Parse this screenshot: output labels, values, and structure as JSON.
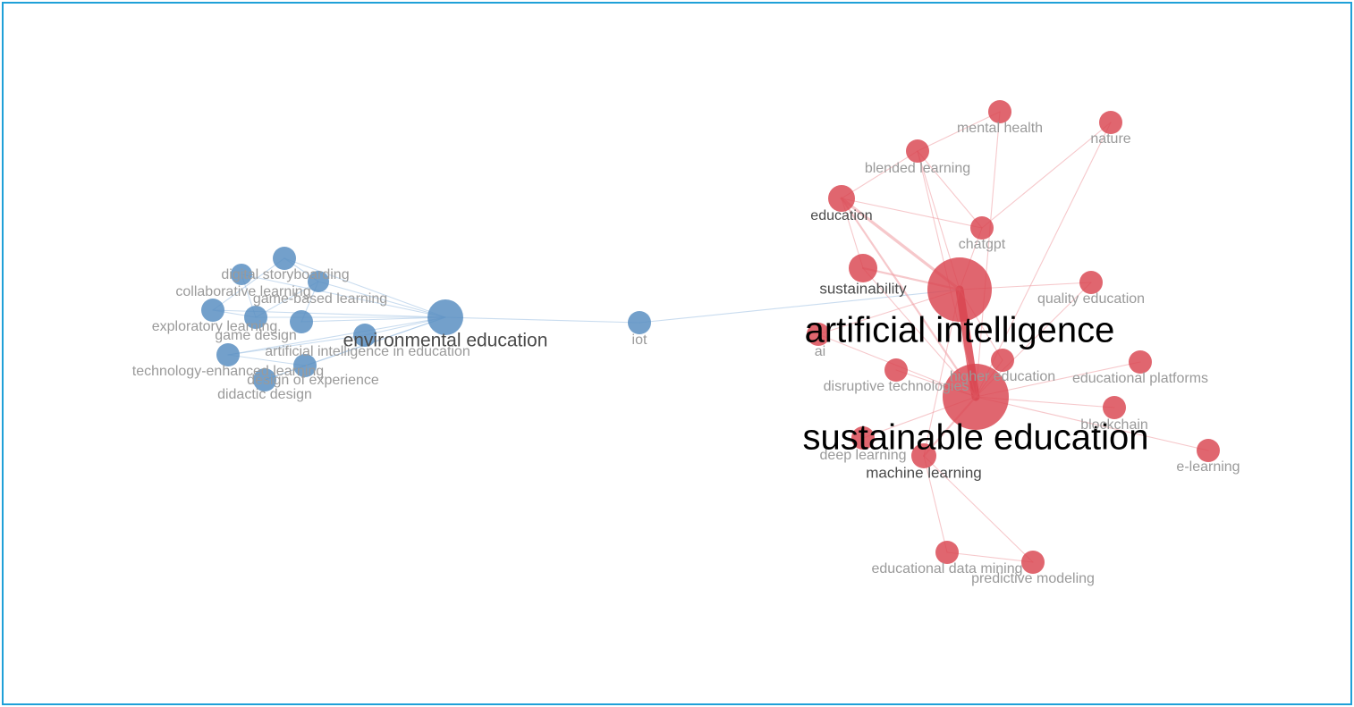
{
  "colors": {
    "frame": "#1fa0d8",
    "blue_cluster": "#5b8fc2",
    "red_cluster": "#d9444f",
    "blue_edge": "#9cc0e2",
    "red_edge": "#ee9aa0",
    "label_dark": "#000000",
    "label_mid": "#4a4a4a",
    "label_light": "#9a9a9a"
  },
  "network": {
    "clusters": [
      {
        "id": "blue",
        "color": "#5b8fc2"
      },
      {
        "id": "red",
        "color": "#d9444f"
      }
    ],
    "nodes": [
      {
        "id": "digital-storyboarding",
        "label": "digital storyboarding",
        "cluster": "blue",
        "weight": 1
      },
      {
        "id": "collaborative-learning",
        "label": "collaborative learning",
        "cluster": "blue",
        "weight": 1
      },
      {
        "id": "game-based-learning",
        "label": "game-based learning",
        "cluster": "blue",
        "weight": 1
      },
      {
        "id": "exploratory-learning",
        "label": "exploratory learning",
        "cluster": "blue",
        "weight": 1
      },
      {
        "id": "game-design",
        "label": "game design",
        "cluster": "blue",
        "weight": 1
      },
      {
        "id": "environmental-education",
        "label": "environmental education",
        "cluster": "blue",
        "weight": 3
      },
      {
        "id": "artificial-intelligence-in-education",
        "label": "artificial intelligence in education",
        "cluster": "blue",
        "weight": 1
      },
      {
        "id": "technology-enhanced-learning",
        "label": "technology-enhanced learning",
        "cluster": "blue",
        "weight": 1
      },
      {
        "id": "design-of-experience",
        "label": "design of experience",
        "cluster": "blue",
        "weight": 1
      },
      {
        "id": "didactic-design",
        "label": "didactic design",
        "cluster": "blue",
        "weight": 1
      },
      {
        "id": "blue-node-a",
        "label": "",
        "cluster": "blue",
        "weight": 1
      },
      {
        "id": "iot",
        "label": "iot",
        "cluster": "blue",
        "weight": 1
      },
      {
        "id": "mental-health",
        "label": "mental health",
        "cluster": "red",
        "weight": 1
      },
      {
        "id": "nature",
        "label": "nature",
        "cluster": "red",
        "weight": 1
      },
      {
        "id": "blended-learning",
        "label": "blended learning",
        "cluster": "red",
        "weight": 1
      },
      {
        "id": "education",
        "label": "education",
        "cluster": "red",
        "weight": 2
      },
      {
        "id": "chatgpt",
        "label": "chatgpt",
        "cluster": "red",
        "weight": 1
      },
      {
        "id": "sustainability",
        "label": "sustainability",
        "cluster": "red",
        "weight": 2
      },
      {
        "id": "quality-education",
        "label": "quality education",
        "cluster": "red",
        "weight": 1
      },
      {
        "id": "artificial-intelligence",
        "label": "artificial intelligence",
        "cluster": "red",
        "weight": 12
      },
      {
        "id": "ai",
        "label": "ai",
        "cluster": "red",
        "weight": 1
      },
      {
        "id": "higher-education",
        "label": "higher education",
        "cluster": "red",
        "weight": 1
      },
      {
        "id": "educational-platforms",
        "label": "educational platforms",
        "cluster": "red",
        "weight": 1
      },
      {
        "id": "disruptive-technologies",
        "label": "disruptive technologies",
        "cluster": "red",
        "weight": 1
      },
      {
        "id": "sustainable-education",
        "label": "sustainable education",
        "cluster": "red",
        "weight": 14
      },
      {
        "id": "blockchain",
        "label": "blockchain",
        "cluster": "red",
        "weight": 1
      },
      {
        "id": "deep-learning",
        "label": "deep learning",
        "cluster": "red",
        "weight": 1
      },
      {
        "id": "machine-learning",
        "label": "machine learning",
        "cluster": "red",
        "weight": 2
      },
      {
        "id": "e-learning",
        "label": "e-learning",
        "cluster": "red",
        "weight": 1
      },
      {
        "id": "educational-data-mining",
        "label": "educational data mining",
        "cluster": "red",
        "weight": 1
      },
      {
        "id": "predictive-modeling",
        "label": "predictive modeling",
        "cluster": "red",
        "weight": 1
      }
    ],
    "edges": [
      [
        "digital-storyboarding",
        "environmental-education",
        1
      ],
      [
        "collaborative-learning",
        "environmental-education",
        1
      ],
      [
        "game-based-learning",
        "environmental-education",
        1
      ],
      [
        "exploratory-learning",
        "environmental-education",
        1
      ],
      [
        "game-design",
        "environmental-education",
        1
      ],
      [
        "artificial-intelligence-in-education",
        "environmental-education",
        1
      ],
      [
        "technology-enhanced-learning",
        "environmental-education",
        1
      ],
      [
        "design-of-experience",
        "environmental-education",
        1
      ],
      [
        "didactic-design",
        "environmental-education",
        1
      ],
      [
        "blue-node-a",
        "environmental-education",
        1
      ],
      [
        "digital-storyboarding",
        "game-design",
        1
      ],
      [
        "collaborative-learning",
        "game-based-learning",
        1
      ],
      [
        "exploratory-learning",
        "game-design",
        1
      ],
      [
        "exploratory-learning",
        "collaborative-learning",
        1
      ],
      [
        "game-based-learning",
        "game-design",
        1
      ],
      [
        "technology-enhanced-learning",
        "design-of-experience",
        1
      ],
      [
        "didactic-design",
        "design-of-experience",
        1
      ],
      [
        "blue-node-a",
        "game-based-learning",
        1
      ],
      [
        "artificial-intelligence-in-education",
        "technology-enhanced-learning",
        1
      ],
      [
        "environmental-education",
        "iot",
        1
      ],
      [
        "iot",
        "artificial-intelligence",
        1
      ],
      [
        "artificial-intelligence",
        "sustainable-education",
        8
      ],
      [
        "education",
        "artificial-intelligence",
        3
      ],
      [
        "education",
        "sustainable-education",
        2
      ],
      [
        "sustainability",
        "artificial-intelligence",
        2
      ],
      [
        "sustainability",
        "sustainable-education",
        1
      ],
      [
        "chatgpt",
        "artificial-intelligence",
        1
      ],
      [
        "blended-learning",
        "artificial-intelligence",
        1
      ],
      [
        "blended-learning",
        "sustainable-education",
        1
      ],
      [
        "mental-health",
        "sustainable-education",
        1
      ],
      [
        "nature",
        "sustainable-education",
        1
      ],
      [
        "quality-education",
        "sustainable-education",
        1
      ],
      [
        "quality-education",
        "artificial-intelligence",
        1
      ],
      [
        "ai",
        "sustainable-education",
        1
      ],
      [
        "higher-education",
        "artificial-intelligence",
        1
      ],
      [
        "higher-education",
        "sustainable-education",
        1
      ],
      [
        "educational-platforms",
        "sustainable-education",
        1
      ],
      [
        "disruptive-technologies",
        "sustainable-education",
        1
      ],
      [
        "blockchain",
        "sustainable-education",
        1
      ],
      [
        "deep-learning",
        "sustainable-education",
        1
      ],
      [
        "machine-learning",
        "sustainable-education",
        2
      ],
      [
        "machine-learning",
        "artificial-intelligence",
        1
      ],
      [
        "e-learning",
        "sustainable-education",
        1
      ],
      [
        "educational-data-mining",
        "machine-learning",
        1
      ],
      [
        "predictive-modeling",
        "machine-learning",
        1
      ],
      [
        "educational-data-mining",
        "predictive-modeling",
        1
      ],
      [
        "education",
        "chatgpt",
        1
      ],
      [
        "education",
        "blended-learning",
        1
      ],
      [
        "blended-learning",
        "chatgpt",
        1
      ],
      [
        "mental-health",
        "blended-learning",
        1
      ],
      [
        "nature",
        "chatgpt",
        1
      ],
      [
        "sustainability",
        "education",
        1
      ],
      [
        "ai",
        "artificial-intelligence",
        1
      ]
    ]
  }
}
